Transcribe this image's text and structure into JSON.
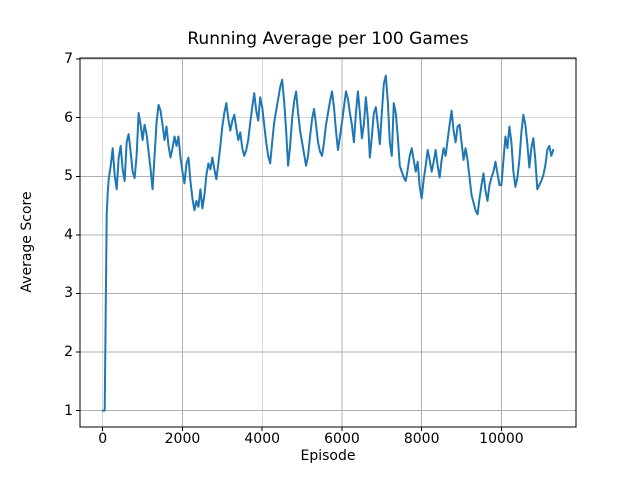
{
  "chart_data": {
    "type": "line",
    "title": "Running Average per 100 Games",
    "xlabel": "Episode",
    "ylabel": "Average Score",
    "xlim": [
      -570,
      11870
    ],
    "ylim": [
      0.72,
      7.02
    ],
    "xticks": [
      0,
      2000,
      4000,
      6000,
      8000,
      10000
    ],
    "yticks": [
      1,
      2,
      3,
      4,
      5,
      6,
      7
    ],
    "grid": true,
    "legend": false,
    "line_color": "#1f77b4",
    "grid_color": "#b0b0b0",
    "spine_color": "#000000",
    "background_color": "#ffffff",
    "series": [
      {
        "name": "running-average",
        "x": [
          0,
          50,
          75,
          100,
          125,
          150,
          200,
          250,
          300,
          350,
          400,
          450,
          500,
          550,
          600,
          650,
          700,
          750,
          800,
          850,
          900,
          950,
          1000,
          1050,
          1100,
          1150,
          1200,
          1250,
          1300,
          1350,
          1400,
          1450,
          1500,
          1550,
          1600,
          1650,
          1700,
          1750,
          1800,
          1850,
          1900,
          1950,
          2000,
          2050,
          2100,
          2150,
          2200,
          2250,
          2300,
          2350,
          2400,
          2450,
          2500,
          2550,
          2600,
          2650,
          2700,
          2750,
          2800,
          2850,
          2900,
          2950,
          3000,
          3050,
          3100,
          3150,
          3200,
          3250,
          3300,
          3350,
          3400,
          3450,
          3500,
          3550,
          3600,
          3650,
          3700,
          3750,
          3800,
          3850,
          3900,
          3950,
          4000,
          4050,
          4100,
          4150,
          4200,
          4250,
          4300,
          4350,
          4400,
          4450,
          4500,
          4550,
          4600,
          4650,
          4700,
          4750,
          4800,
          4850,
          4900,
          4950,
          5000,
          5050,
          5100,
          5150,
          5200,
          5250,
          5300,
          5350,
          5400,
          5450,
          5500,
          5550,
          5600,
          5650,
          5700,
          5750,
          5800,
          5850,
          5900,
          5950,
          6000,
          6050,
          6100,
          6150,
          6200,
          6250,
          6300,
          6350,
          6400,
          6450,
          6500,
          6550,
          6600,
          6650,
          6700,
          6750,
          6800,
          6850,
          6900,
          6950,
          7000,
          7050,
          7100,
          7150,
          7200,
          7250,
          7300,
          7350,
          7400,
          7450,
          7500,
          7550,
          7600,
          7650,
          7700,
          7750,
          7800,
          7850,
          7900,
          7950,
          8000,
          8050,
          8100,
          8150,
          8200,
          8250,
          8300,
          8350,
          8400,
          8450,
          8500,
          8550,
          8600,
          8650,
          8700,
          8750,
          8800,
          8850,
          8900,
          8950,
          9000,
          9050,
          9100,
          9150,
          9200,
          9250,
          9300,
          9350,
          9400,
          9450,
          9500,
          9550,
          9600,
          9650,
          9700,
          9750,
          9800,
          9850,
          9900,
          9950,
          10000,
          10050,
          10100,
          10150,
          10200,
          10250,
          10300,
          10350,
          10400,
          10450,
          10500,
          10550,
          10600,
          10650,
          10700,
          10750,
          10800,
          10850,
          10900,
          10950,
          11000,
          11050,
          11100,
          11150,
          11200,
          11250,
          11300
        ],
        "y": [
          1.0,
          1.0,
          2.72,
          4.35,
          4.72,
          4.95,
          5.18,
          5.48,
          5.02,
          4.78,
          5.32,
          5.52,
          5.12,
          4.92,
          5.58,
          5.72,
          5.42,
          5.08,
          4.97,
          5.35,
          6.08,
          5.88,
          5.62,
          5.88,
          5.72,
          5.42,
          5.12,
          4.78,
          5.35,
          5.92,
          6.22,
          6.12,
          5.88,
          5.62,
          5.85,
          5.52,
          5.32,
          5.48,
          5.68,
          5.52,
          5.68,
          5.32,
          5.08,
          4.88,
          5.22,
          5.32,
          4.92,
          4.62,
          4.42,
          4.58,
          4.48,
          4.78,
          4.45,
          4.68,
          5.02,
          5.22,
          5.12,
          5.32,
          5.12,
          4.95,
          5.22,
          5.52,
          5.85,
          6.08,
          6.25,
          5.98,
          5.78,
          5.95,
          6.05,
          5.82,
          5.62,
          5.75,
          5.48,
          5.35,
          5.45,
          5.62,
          5.92,
          6.18,
          6.42,
          6.12,
          5.95,
          6.35,
          6.18,
          5.88,
          5.58,
          5.35,
          5.22,
          5.58,
          5.92,
          6.12,
          6.32,
          6.52,
          6.65,
          6.28,
          5.78,
          5.18,
          5.52,
          5.98,
          6.28,
          6.45,
          6.08,
          5.78,
          5.58,
          5.38,
          5.18,
          5.35,
          5.68,
          5.98,
          6.15,
          5.88,
          5.58,
          5.42,
          5.35,
          5.58,
          5.88,
          6.08,
          6.28,
          6.45,
          6.18,
          5.78,
          5.45,
          5.68,
          5.92,
          6.18,
          6.45,
          6.32,
          6.08,
          5.88,
          5.58,
          6.08,
          6.45,
          6.08,
          5.65,
          5.88,
          6.35,
          5.98,
          5.32,
          5.68,
          6.08,
          6.18,
          5.88,
          5.55,
          6.08,
          6.58,
          6.72,
          6.28,
          5.58,
          5.35,
          6.25,
          6.08,
          5.68,
          5.18,
          5.08,
          4.98,
          4.92,
          5.12,
          5.35,
          5.48,
          5.28,
          5.08,
          5.25,
          4.82,
          4.62,
          4.95,
          5.18,
          5.45,
          5.28,
          5.08,
          5.25,
          5.45,
          5.18,
          4.98,
          5.28,
          5.48,
          5.35,
          5.62,
          5.88,
          6.12,
          5.78,
          5.58,
          5.85,
          5.88,
          5.58,
          5.28,
          5.48,
          5.28,
          4.98,
          4.68,
          4.55,
          4.42,
          4.35,
          4.62,
          4.85,
          5.05,
          4.75,
          4.58,
          4.85,
          4.98,
          5.08,
          5.25,
          5.05,
          4.85,
          4.85,
          5.28,
          5.68,
          5.48,
          5.85,
          5.58,
          5.08,
          4.82,
          4.98,
          5.28,
          5.75,
          6.05,
          5.88,
          5.55,
          5.15,
          5.48,
          5.65,
          5.28,
          4.78,
          4.85,
          4.92,
          5.02,
          5.18,
          5.45,
          5.52,
          5.35,
          5.45
        ]
      }
    ]
  }
}
